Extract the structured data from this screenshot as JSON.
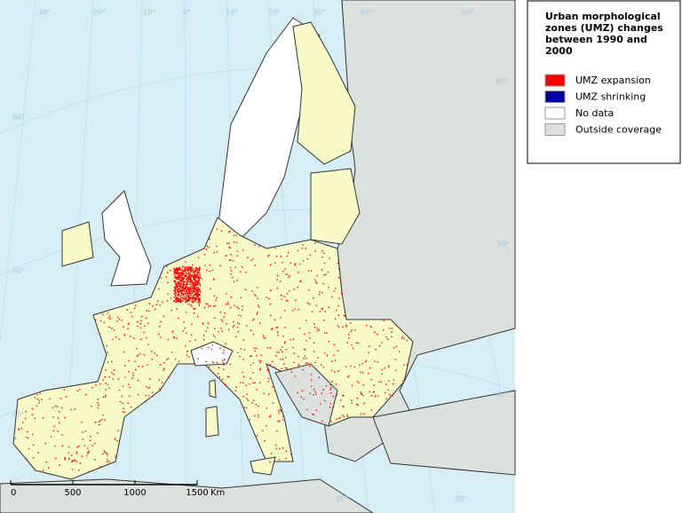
{
  "legend": {
    "title": "Urban morphological zones (UMZ) changes between 1990 and 2000",
    "items": [
      {
        "label": "UMZ expansion",
        "color": "#ff0000"
      },
      {
        "label": "UMZ shrinking",
        "color": "#0000a0"
      },
      {
        "label": "No data",
        "color": "#ffffff"
      },
      {
        "label": "Outside coverage",
        "color": "#dde1de"
      }
    ]
  },
  "scale_bar": {
    "labels": [
      "0",
      "500",
      "1000",
      "1500"
    ],
    "unit": "Km"
  },
  "graticule": {
    "top": [
      "-30°",
      "-20°",
      "-10°",
      "0°",
      "10°",
      "20°",
      "30°",
      "40°",
      "50°"
    ],
    "right": [
      "60°",
      "50°",
      "40°"
    ],
    "left": [
      "60°",
      "50°",
      "40°"
    ],
    "bottom": [
      "20°",
      "30°"
    ]
  }
}
